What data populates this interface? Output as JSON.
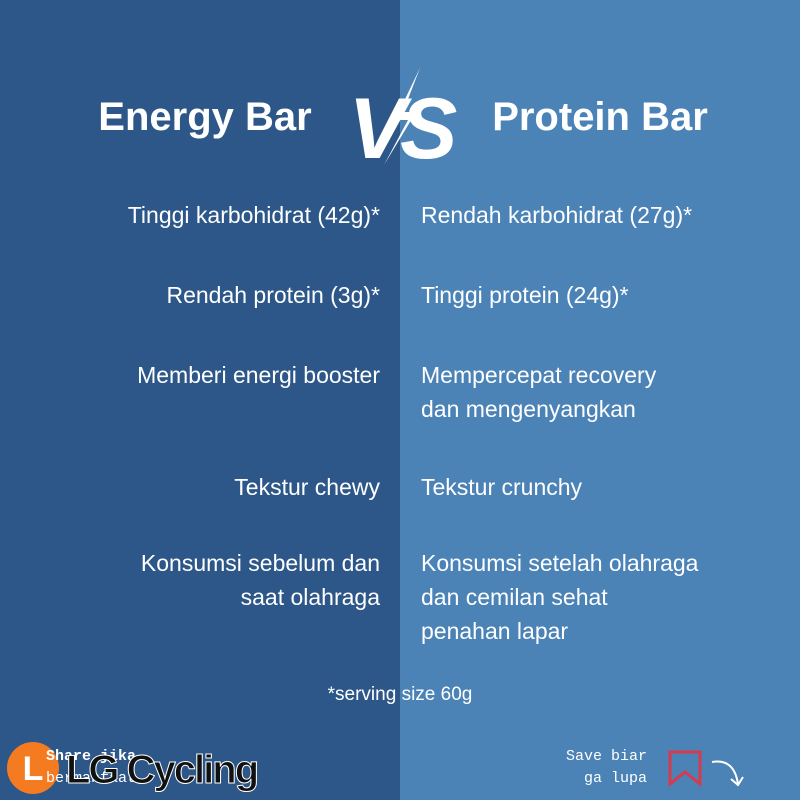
{
  "left": {
    "title": "Energy Bar",
    "items": [
      [
        "Tinggi karbohidrat (42g)*"
      ],
      [
        "Rendah protein (3g)*"
      ],
      [
        "Memberi energi booster"
      ],
      [
        "Tekstur chewy"
      ],
      [
        "Konsumsi sebelum dan",
        "saat olahraga"
      ]
    ]
  },
  "right": {
    "title": "Protein Bar",
    "items": [
      [
        "Rendah karbohidrat (27g)*"
      ],
      [
        "Tinggi protein (24g)*"
      ],
      [
        "Mempercepat recovery",
        "dan mengenyangkan"
      ],
      [
        "Tekstur crunchy"
      ],
      [
        "Konsumsi setelah olahraga",
        "dan cemilan sehat",
        "penahan lapar"
      ]
    ]
  },
  "vs": "VS",
  "footnote": "*serving size 60g",
  "share": [
    "Share jika",
    "bermanfaat"
  ],
  "save": [
    "Save biar",
    "ga lupa"
  ],
  "watermark": {
    "logo": "L",
    "name": "LG Cycling"
  }
}
